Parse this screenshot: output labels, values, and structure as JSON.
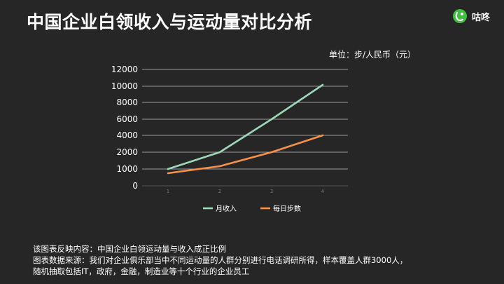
{
  "header": {
    "title": "中国企业白领收入与运动量对比分析",
    "brand": "咕咚",
    "brand_icon": "chat-bubble-logo-icon",
    "brand_color": "#3fbf3f"
  },
  "unit_label": "单位：步/人民币（元）",
  "chart_data": {
    "type": "line",
    "x": [
      1,
      2,
      3,
      4
    ],
    "xtick_labels": [
      "1",
      "2",
      "3",
      "4"
    ],
    "ylim": [
      0,
      12000
    ],
    "yticks": [
      0,
      1000,
      2000,
      4000,
      6000,
      8000,
      10000,
      12000
    ],
    "grid": true,
    "legend_position": "bottom-center",
    "series": [
      {
        "name": "月收入",
        "values": [
          1000,
          2000,
          6000,
          10000
        ],
        "color": "#9dd9b9"
      },
      {
        "name": "每日步数",
        "values": [
          700,
          1200,
          2000,
          4000
        ],
        "color": "#f6904b"
      }
    ]
  },
  "footer": {
    "line1": "该图表反映内容：中国企业白领运动量与收入成正比例",
    "line2": "图表数据来源：我们对企业俱乐部当中不同运动量的人群分别进行电话调研所得，样本覆盖人群3000人，",
    "line3": "随机抽取包括IT，政府，金融，制造业等十个行业的企业员工"
  }
}
